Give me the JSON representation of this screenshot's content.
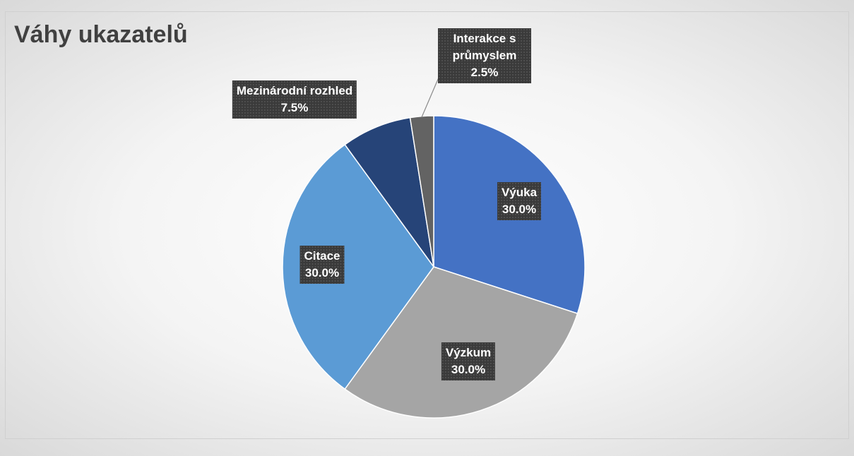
{
  "chart_data": {
    "type": "pie",
    "title": "Váhy ukazatelů",
    "categories": [
      "Výuka",
      "Výzkum",
      "Citace",
      "Mezinárodní rozhled",
      "Interakce s průmyslem"
    ],
    "values": [
      30,
      30,
      30,
      7.5,
      2.5
    ],
    "value_labels": [
      "30.0%",
      "30.0%",
      "30.0%",
      "7.5%",
      "2.5%"
    ],
    "colors": [
      "#4472c4",
      "#a5a5a5",
      "#5b9bd5",
      "#264478",
      "#636363"
    ]
  }
}
